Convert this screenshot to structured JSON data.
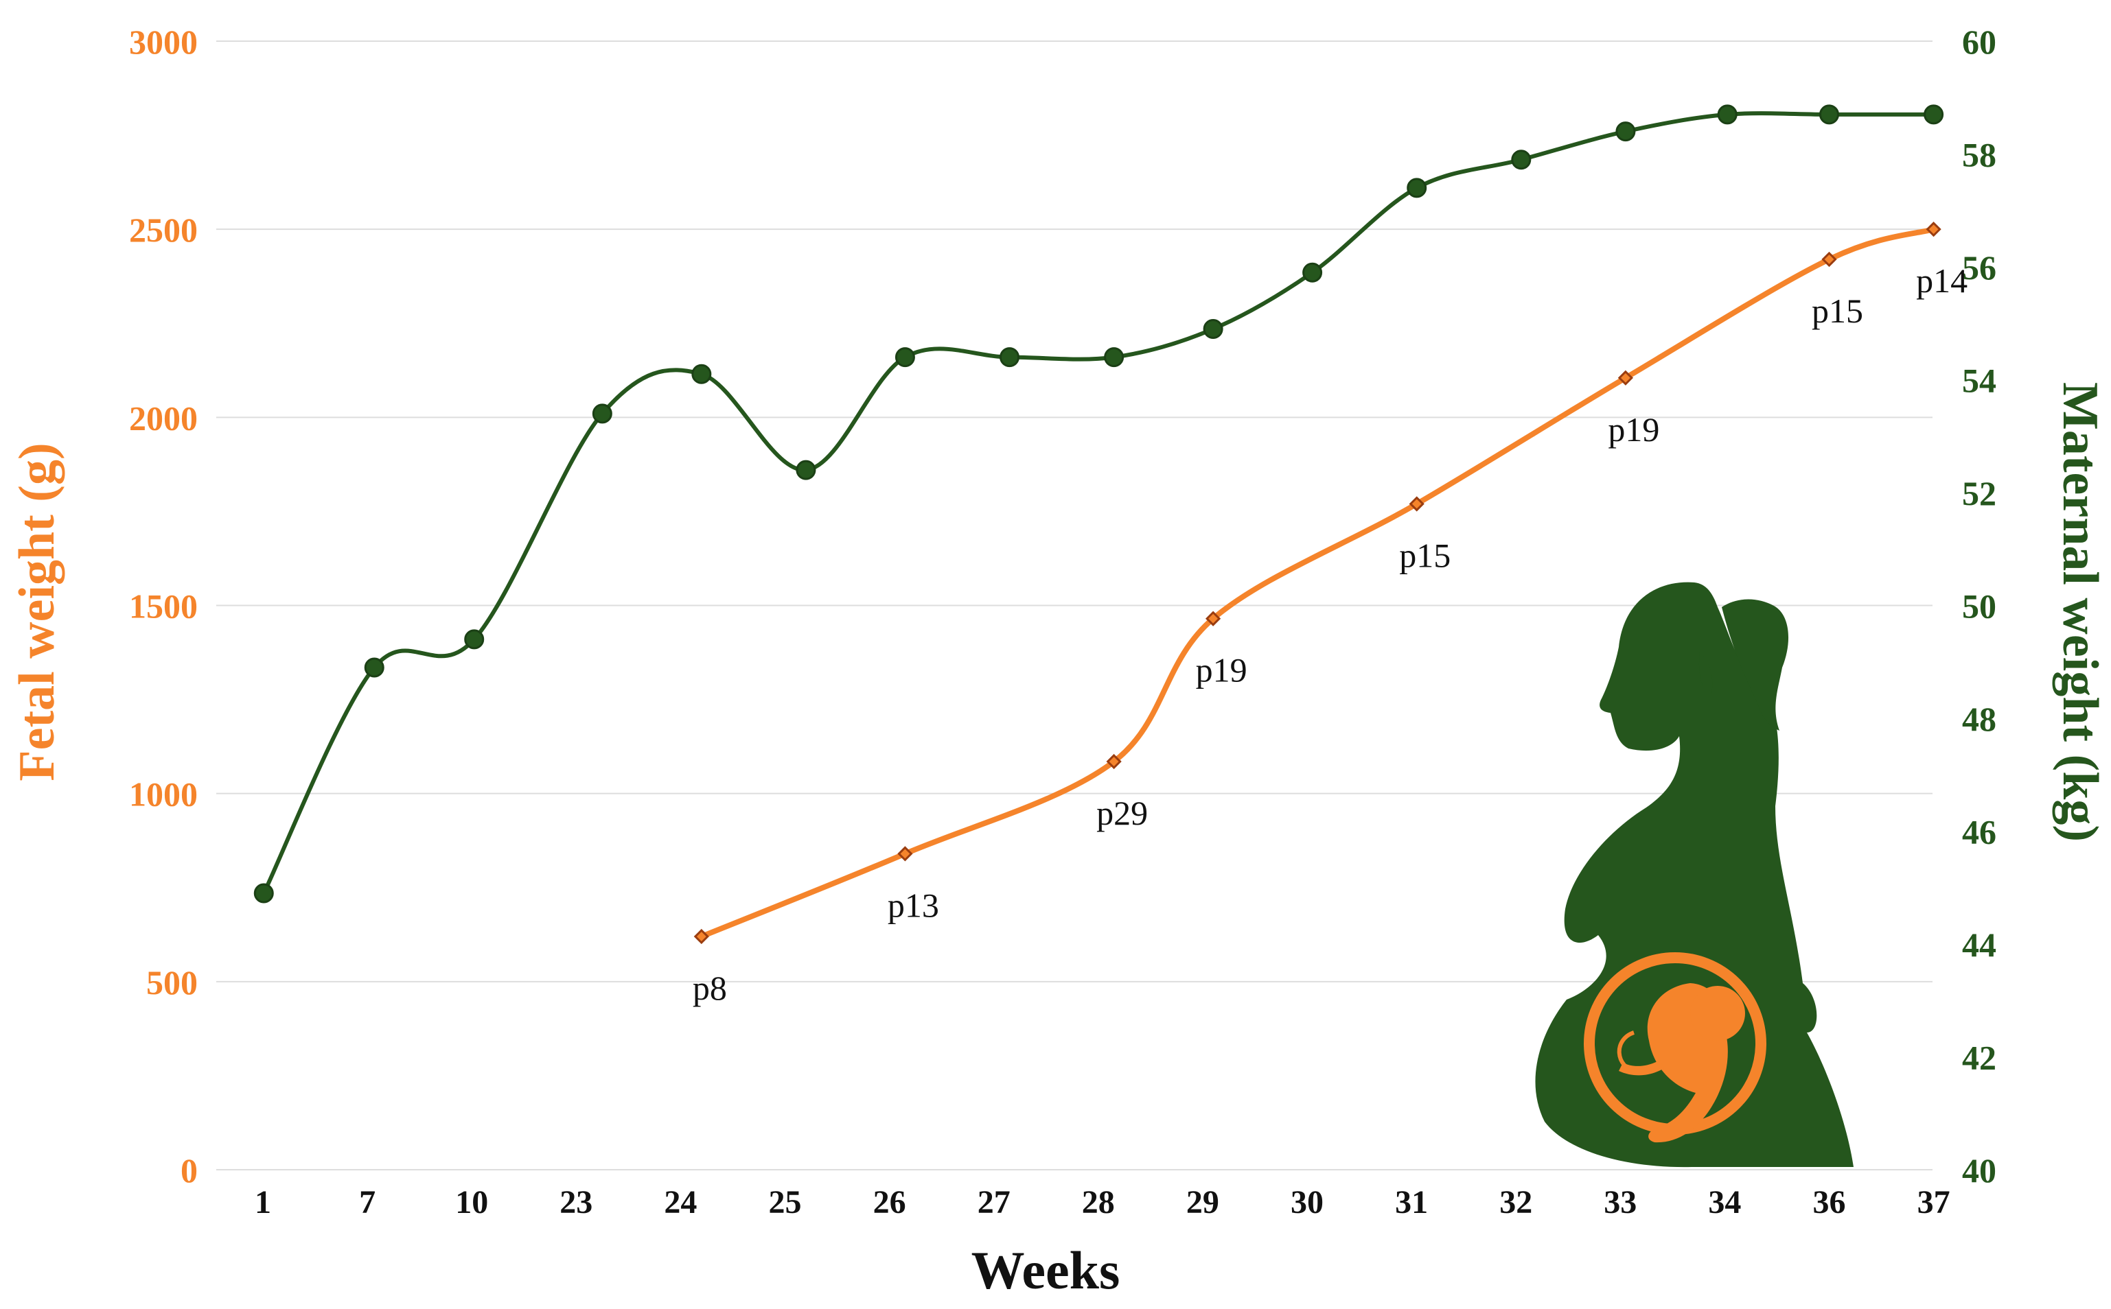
{
  "chart_data": {
    "type": "line",
    "categories": [
      "1",
      "7",
      "10",
      "23",
      "24",
      "25",
      "26",
      "27",
      "28",
      "29",
      "30",
      "31",
      "32",
      "33",
      "34",
      "36",
      "37"
    ],
    "xlabel": "Weeks",
    "y_left": {
      "label": "Fetal weight (g)",
      "range": [
        0,
        3000
      ],
      "ticks": [
        "0",
        "500",
        "1000",
        "1500",
        "2000",
        "2500",
        "3000"
      ]
    },
    "y_right": {
      "label": "Maternal weight (kg)",
      "range": [
        40,
        60
      ],
      "ticks": [
        "40",
        "42",
        "44",
        "46",
        "48",
        "50",
        "52",
        "54",
        "56",
        "58",
        "60"
      ]
    },
    "grid": true,
    "series": [
      {
        "axis": "right",
        "color": "#25561d",
        "points": [
          {
            "x": 1.05,
            "y": 44.9
          },
          {
            "x": 7.2,
            "y": 48.9
          },
          {
            "x": 10.3,
            "y": 49.4
          },
          {
            "x": 23.25,
            "y": 53.4
          },
          {
            "x": 24.2,
            "y": 54.1
          },
          {
            "x": 25.2,
            "y": 52.4
          },
          {
            "x": 26.15,
            "y": 54.4
          },
          {
            "x": 27.15,
            "y": 54.4
          },
          {
            "x": 28.15,
            "y": 54.4
          },
          {
            "x": 29.1,
            "y": 54.9
          },
          {
            "x": 30.05,
            "y": 55.9
          },
          {
            "x": 31.05,
            "y": 57.4
          },
          {
            "x": 32.05,
            "y": 57.9
          },
          {
            "x": 33.05,
            "y": 58.4
          },
          {
            "x": 34.05,
            "y": 58.7
          },
          {
            "x": 36.0,
            "y": 58.7
          },
          {
            "x": 37.0,
            "y": 58.7
          }
        ]
      },
      {
        "axis": "left",
        "color": "#f5842b",
        "points": [
          {
            "x": 24.2,
            "y": 620,
            "label": "p8"
          },
          {
            "x": 26.15,
            "y": 840,
            "label": "p13"
          },
          {
            "x": 28.15,
            "y": 1085,
            "label": "p29"
          },
          {
            "x": 29.1,
            "y": 1465,
            "label": "p19"
          },
          {
            "x": 31.05,
            "y": 1770,
            "label": "p15"
          },
          {
            "x": 33.05,
            "y": 2105,
            "label": "p19"
          },
          {
            "x": 36.0,
            "y": 2420,
            "label": "p15"
          },
          {
            "x": 37.0,
            "y": 2500,
            "label": "p14"
          }
        ]
      }
    ]
  },
  "icons": {
    "illustration": "pregnant-woman-silhouette-icon",
    "fetus": "fetus-icon"
  },
  "colors": {
    "fetal": "#f5842b",
    "maternal": "#25561d",
    "grid": "#dddddd"
  }
}
